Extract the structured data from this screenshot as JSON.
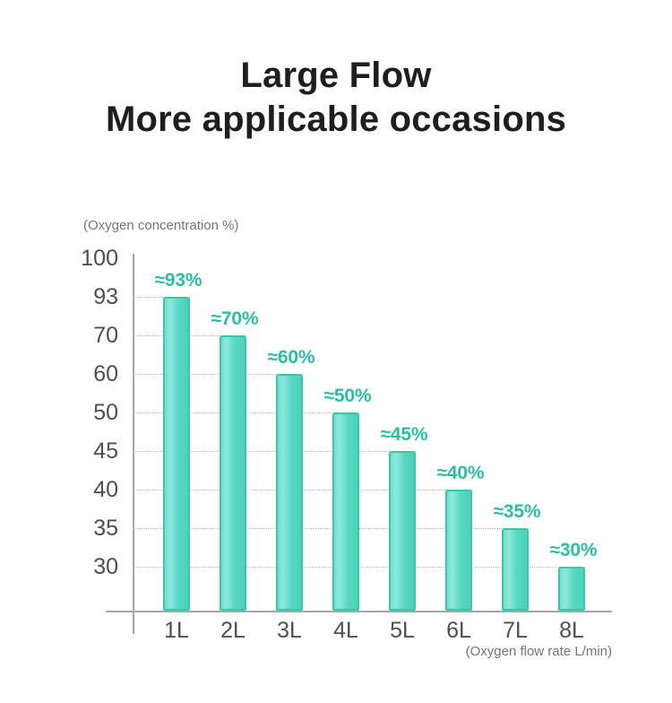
{
  "title": {
    "line1": "Large Flow",
    "line2": "More applicable occasions"
  },
  "chart_data": {
    "type": "bar",
    "title": "Large Flow — More applicable occasions",
    "categories": [
      "1L",
      "2L",
      "3L",
      "4L",
      "5L",
      "6L",
      "7L",
      "8L"
    ],
    "values": [
      93,
      70,
      60,
      50,
      45,
      40,
      35,
      30
    ],
    "bar_labels": [
      "≈93%",
      "≈70%",
      "≈60%",
      "≈50%",
      "≈45%",
      "≈40%",
      "≈35%",
      "≈30%"
    ],
    "y_ticks": [
      100,
      93,
      70,
      60,
      50,
      45,
      40,
      35,
      30
    ],
    "y_axis_label": "(Oxygen concentration %)",
    "x_axis_label": "(Oxygen flow rate L/min)",
    "y_scale": "ordinal-evenly-spaced-ticks",
    "grid": "dotted horizontal, each gridline runs from y-axis to its matching bar",
    "legend": "none"
  },
  "colors": {
    "bar_fill": "#55d6bf",
    "bar_fill_light": "#8ceada",
    "bar_fill_dark": "#4ad2ba",
    "bar_border": "#3ac6ab",
    "bar_label": "#2abfa3",
    "title_text": "#1e1e1e",
    "tick_text": "#4f4f4f",
    "axis_line": "#a6a6a6",
    "gridline": "#bdbdbd",
    "caption_text": "#757575",
    "background": "#ffffff"
  }
}
